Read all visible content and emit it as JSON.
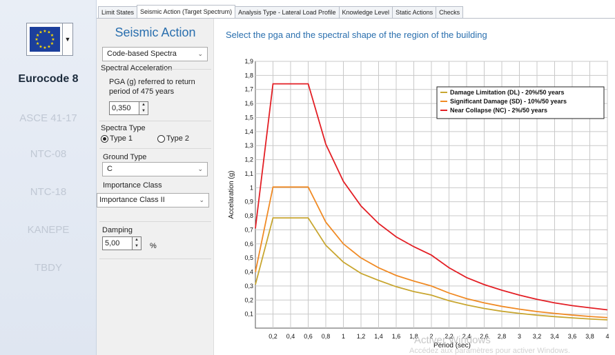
{
  "sidebar": {
    "dropdown_glyph": "▼",
    "items": [
      {
        "label": "Eurocode 8",
        "active": true
      },
      {
        "label": "ASCE 41-17",
        "active": false
      },
      {
        "label": "NTC-08",
        "active": false
      },
      {
        "label": "NTC-18",
        "active": false
      },
      {
        "label": "KANEPE",
        "active": false
      },
      {
        "label": "TBDY",
        "active": false
      }
    ]
  },
  "tabs": [
    {
      "label": "Limit States",
      "active": false
    },
    {
      "label": "Seismic Action (Target Spectrum)",
      "active": true
    },
    {
      "label": "Analysis Type - Lateral Load Profile",
      "active": false
    },
    {
      "label": "Knowledge Level",
      "active": false
    },
    {
      "label": "Static Actions",
      "active": false
    },
    {
      "label": "Checks",
      "active": false
    }
  ],
  "panel": {
    "title": "Seismic Action",
    "spectra_select": "Code-based Spectra",
    "spectral_acceleration_label": "Spectral Acceleration",
    "pga_label_line1": "PGA (g) referred to return",
    "pga_label_line2": "period of 475 years",
    "pga_value": "0,350",
    "spectra_type_label": "Spectra Type",
    "type1_label": "Type 1",
    "type2_label": "Type 2",
    "spectra_type_selected": "Type 1",
    "ground_type_label": "Ground Type",
    "ground_type_value": "C",
    "importance_class_label": "Importance Class",
    "importance_class_value": "Importance Class II",
    "damping_label": "Damping",
    "damping_value": "5,00",
    "damping_unit": "%"
  },
  "instruction": "Select the pga and the spectral shape of the region of the building",
  "watermark": {
    "line1": "Activer Windows",
    "line2": "Accédez aux paramètres pour activer Windows."
  },
  "colors": {
    "dl": "#c8a630",
    "sd": "#f08a24",
    "nc": "#e31e24",
    "accent": "#2a6fae"
  },
  "chart_data": {
    "type": "line",
    "xlabel": "Period (sec)",
    "ylabel": "Accelaration (g)",
    "xlim": [
      0,
      4
    ],
    "ylim": [
      0,
      1.9
    ],
    "x_ticks": [
      0.2,
      0.4,
      0.6,
      0.8,
      1,
      1.2,
      1.4,
      1.6,
      1.8,
      2,
      2.2,
      2.4,
      2.6,
      2.8,
      3,
      3.2,
      3.4,
      3.6,
      3.8,
      4
    ],
    "x_tick_labels": [
      "0,2",
      "0,4",
      "0,6",
      "0,8",
      "1",
      "1,2",
      "1,4",
      "1,6",
      "1,8",
      "2",
      "2,2",
      "2,4",
      "2,6",
      "2,8",
      "3",
      "3,2",
      "3,4",
      "3,6",
      "3,8",
      "4"
    ],
    "y_ticks": [
      0.1,
      0.2,
      0.3,
      0.4,
      0.5,
      0.6,
      0.7,
      0.8,
      0.9,
      1,
      1.1,
      1.2,
      1.3,
      1.4,
      1.5,
      1.6,
      1.7,
      1.8,
      1.9
    ],
    "y_tick_labels": [
      "0,1",
      "0,2",
      "0,3",
      "0,4",
      "0,5",
      "0,6",
      "0,7",
      "0,8",
      "0,9",
      "1",
      "1,1",
      "1,2",
      "1,3",
      "1,4",
      "1,5",
      "1,6",
      "1,7",
      "1,8",
      "1,9"
    ],
    "grid": true,
    "legend_position": "top-right",
    "series": [
      {
        "name": "Damage Limitation (DL) - 20%/50 years",
        "color": "#c8a630",
        "x": [
          0,
          0.2,
          0.6,
          0.8,
          1.0,
          1.2,
          1.4,
          1.6,
          1.8,
          2.0,
          2.2,
          2.4,
          2.6,
          2.8,
          3.0,
          3.2,
          3.4,
          3.6,
          3.8,
          4.0
        ],
        "y": [
          0.31,
          0.785,
          0.785,
          0.59,
          0.47,
          0.39,
          0.34,
          0.295,
          0.26,
          0.235,
          0.195,
          0.165,
          0.14,
          0.12,
          0.105,
          0.092,
          0.082,
          0.073,
          0.065,
          0.059
        ]
      },
      {
        "name": "Significant Damage (SD) - 10%/50 years",
        "color": "#f08a24",
        "x": [
          0,
          0.2,
          0.6,
          0.8,
          1.0,
          1.2,
          1.4,
          1.6,
          1.8,
          2.0,
          2.2,
          2.4,
          2.6,
          2.8,
          3.0,
          3.2,
          3.4,
          3.6,
          3.8,
          4.0
        ],
        "y": [
          0.4,
          1.005,
          1.005,
          0.755,
          0.6,
          0.5,
          0.43,
          0.375,
          0.335,
          0.3,
          0.25,
          0.21,
          0.18,
          0.155,
          0.135,
          0.118,
          0.105,
          0.093,
          0.083,
          0.075
        ]
      },
      {
        "name": "Near Collapse (NC) -  2%/50 years",
        "color": "#e31e24",
        "x": [
          0,
          0.2,
          0.6,
          0.8,
          1.0,
          1.2,
          1.4,
          1.6,
          1.8,
          2.0,
          2.2,
          2.4,
          2.6,
          2.8,
          3.0,
          3.2,
          3.4,
          3.6,
          3.8,
          4.0
        ],
        "y": [
          0.71,
          1.74,
          1.74,
          1.31,
          1.045,
          0.87,
          0.745,
          0.65,
          0.58,
          0.52,
          0.43,
          0.36,
          0.31,
          0.27,
          0.235,
          0.205,
          0.18,
          0.16,
          0.145,
          0.13
        ]
      }
    ]
  }
}
